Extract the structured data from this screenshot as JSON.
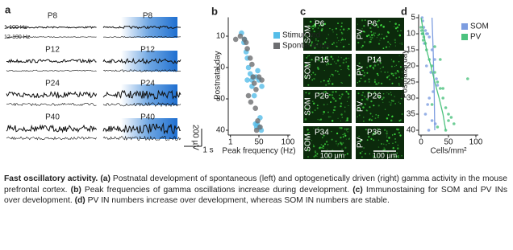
{
  "panel_a": {
    "label": "a",
    "rows": [
      {
        "left": "P8",
        "right": "P8"
      },
      {
        "left": "P12",
        "right": "P12"
      },
      {
        "left": "P24",
        "right": "P24"
      },
      {
        "left": "P40",
        "right": "P40"
      }
    ],
    "filters": [
      "1-100 Hz",
      "12-100 Hz"
    ],
    "scale_y": "200 µV",
    "scale_x": "1 s"
  },
  "chart_data": [
    {
      "type": "scatter",
      "panel": "b",
      "xlabel": "Peak frequency (Hz)",
      "ylabel": "Postnatal day",
      "xlim": [
        0,
        100
      ],
      "xticks": [
        1,
        50,
        100
      ],
      "ylim": [
        5,
        40
      ],
      "yticks": [
        10,
        20,
        30,
        40
      ],
      "y_inverted": true,
      "series": [
        {
          "name": "Stimulated",
          "color": "#55bde8",
          "x": [
            20,
            24,
            28,
            30,
            32,
            35,
            38,
            40,
            45,
            50,
            55,
            48,
            42,
            52,
            47,
            50,
            54,
            46,
            44,
            30,
            25,
            38
          ],
          "values": [
            9,
            12,
            15,
            17,
            20,
            22,
            24,
            23,
            23,
            24,
            26,
            21,
            29,
            36,
            38,
            39,
            40,
            39,
            38,
            24,
            11,
            26
          ]
        },
        {
          "name": "Spontaneous",
          "color": "#6d6e71",
          "x": [
            10,
            18,
            25,
            28,
            30,
            35,
            38,
            40,
            42,
            45,
            50,
            55,
            32,
            36,
            44,
            48,
            52,
            46
          ],
          "values": [
            11,
            10,
            11,
            12,
            14,
            17,
            19,
            23,
            25,
            27,
            23,
            24,
            29,
            31,
            33,
            37,
            39,
            40
          ]
        }
      ]
    },
    {
      "type": "scatter",
      "panel": "d",
      "xlabel": "Cells/mm²",
      "ylabel": "Postnatal day",
      "xlim": [
        0,
        100
      ],
      "xticks": [
        0,
        50,
        100
      ],
      "ylim": [
        5,
        40
      ],
      "yticks": [
        5,
        10,
        15,
        20,
        25,
        30,
        35,
        40
      ],
      "y_inverted": true,
      "series": [
        {
          "name": "SOM",
          "color": "#7d9de0",
          "x": [
            2,
            3,
            5,
            8,
            10,
            12,
            15,
            6,
            20,
            25,
            10,
            18,
            28,
            30,
            22,
            15,
            12,
            8,
            20,
            26,
            14
          ],
          "values": [
            5,
            6,
            8,
            9,
            10,
            10,
            11,
            13,
            15,
            18,
            20,
            22,
            24,
            26,
            28,
            30,
            32,
            35,
            37,
            38,
            40
          ],
          "fit": {
            "x": [
              20,
              21,
              22,
              24,
              25
            ],
            "values": [
              5,
              10,
              15,
              28,
              40
            ]
          }
        },
        {
          "name": "PV",
          "color": "#4cc27e",
          "x": [
            0,
            1,
            2,
            3,
            5,
            4,
            8,
            10,
            15,
            20,
            25,
            30,
            35,
            40,
            20,
            45,
            50,
            55,
            60,
            85,
            30,
            45,
            50,
            40,
            35,
            25
          ],
          "values": [
            8,
            9,
            10,
            10,
            11,
            12,
            13,
            15,
            18,
            20,
            22,
            25,
            27,
            30,
            32,
            33,
            35,
            36,
            38,
            24,
            39,
            40,
            37,
            27,
            18,
            14
          ],
          "fit": {
            "x": [
              0,
              5,
              10,
              18,
              25,
              33,
              40,
              45
            ],
            "values": [
              5,
              10,
              15,
              20,
              25,
              30,
              35,
              40
            ]
          }
        }
      ]
    }
  ],
  "panel_c": {
    "label": "c",
    "images": [
      {
        "marker": "SOM",
        "age": "P6"
      },
      {
        "marker": "PV",
        "age": "P6"
      },
      {
        "marker": "SOM",
        "age": "P15"
      },
      {
        "marker": "PV",
        "age": "P14"
      },
      {
        "marker": "SOM",
        "age": "P26"
      },
      {
        "marker": "PV",
        "age": "P26"
      },
      {
        "marker": "SOM",
        "age": "P34"
      },
      {
        "marker": "PV",
        "age": "P36"
      }
    ],
    "scale_bar": "100 µm"
  },
  "caption": [
    {
      "text": "Fast oscillatory activity.",
      "bold": true
    },
    {
      "text": " ",
      "bold": false
    },
    {
      "text": "(a)",
      "bold": true
    },
    {
      "text": " Postnatal development of spontaneous (left) and optogenetically driven (right) gamma activity in the mouse prefrontal cortex. ",
      "bold": false
    },
    {
      "text": "(b)",
      "bold": true
    },
    {
      "text": " Peak frequencies of gamma oscillations increase during development. ",
      "bold": false
    },
    {
      "text": "(c)",
      "bold": true
    },
    {
      "text": " Immunostaining for SOM and PV INs over development. ",
      "bold": false
    },
    {
      "text": "(d)",
      "bold": true
    },
    {
      "text": " PV IN numbers increase over development, whereas SOM IN numbers are stable.",
      "bold": false
    }
  ]
}
